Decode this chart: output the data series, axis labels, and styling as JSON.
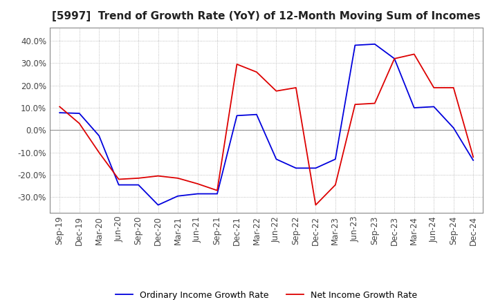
{
  "title": "[5997]  Trend of Growth Rate (YoY) of 12-Month Moving Sum of Incomes",
  "title_fontsize": 11,
  "ylim": [
    -0.37,
    0.46
  ],
  "yticks": [
    -0.3,
    -0.2,
    -0.1,
    0.0,
    0.1,
    0.2,
    0.3,
    0.4
  ],
  "background_color": "#ffffff",
  "grid_color": "#aaaaaa",
  "ordinary_color": "#0000dd",
  "net_color": "#dd0000",
  "legend_ordinary": "Ordinary Income Growth Rate",
  "legend_net": "Net Income Growth Rate",
  "x_labels": [
    "Sep-19",
    "Dec-19",
    "Mar-20",
    "Jun-20",
    "Sep-20",
    "Dec-20",
    "Mar-21",
    "Jun-21",
    "Sep-21",
    "Dec-21",
    "Mar-22",
    "Jun-22",
    "Sep-22",
    "Dec-22",
    "Mar-23",
    "Jun-23",
    "Sep-23",
    "Dec-23",
    "Mar-24",
    "Jun-24",
    "Sep-24",
    "Dec-24"
  ],
  "ordinary_income_growth": [
    0.078,
    0.075,
    -0.025,
    -0.245,
    -0.245,
    -0.335,
    -0.295,
    -0.285,
    -0.285,
    0.065,
    0.07,
    -0.13,
    -0.17,
    -0.17,
    -0.13,
    0.38,
    0.385,
    0.32,
    0.1,
    0.105,
    0.01,
    -0.135
  ],
  "net_income_growth": [
    0.105,
    0.03,
    -0.1,
    -0.22,
    -0.215,
    -0.205,
    -0.215,
    -0.24,
    -0.27,
    0.295,
    0.26,
    0.175,
    0.19,
    -0.335,
    -0.245,
    0.115,
    0.12,
    0.32,
    0.34,
    0.19,
    0.19,
    -0.12
  ]
}
